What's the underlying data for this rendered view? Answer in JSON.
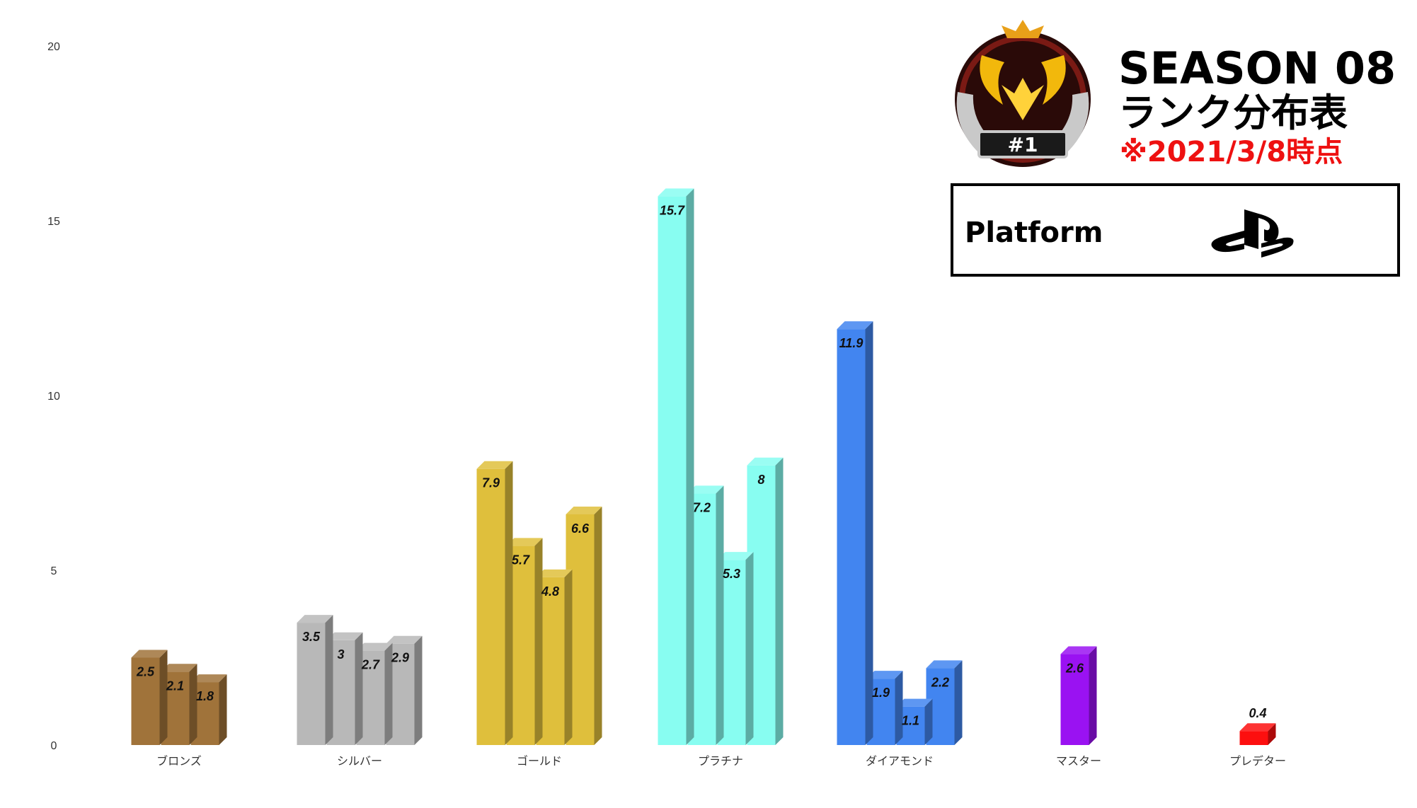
{
  "header": {
    "title_line1": "SEASON 08",
    "title_line2": "ランク分布表",
    "as_of": "※2021/3/8時点",
    "badge_text": "#1",
    "platform_label": "Platform",
    "platform_icon": "playstation-logo-icon"
  },
  "colors": {
    "bronze": "#a0733a",
    "silver": "#b8b8b8",
    "gold": "#dfbf3c",
    "platinum": "#88fdf1",
    "diamond": "#4285f0",
    "master": "#9a12f2",
    "predator": "#fd0f0f",
    "date_red": "#ee1111"
  },
  "chart_data": {
    "type": "bar",
    "title": "",
    "xlabel": "",
    "ylabel": "",
    "ylim": [
      0,
      20
    ],
    "yticks": [
      "0",
      "5",
      "10",
      "15",
      "20"
    ],
    "grid": false,
    "categories": [
      {
        "name": "ブロンズ",
        "color": "bronze",
        "values": [
          2.5,
          2.1,
          1.8
        ],
        "labels": [
          "2.5",
          "2.1",
          "1.8"
        ]
      },
      {
        "name": "シルバー",
        "color": "silver",
        "values": [
          3.5,
          3,
          2.7,
          2.9
        ],
        "labels": [
          "3.5",
          "3",
          "2.7",
          "2.9"
        ]
      },
      {
        "name": "ゴールド",
        "color": "gold",
        "values": [
          7.9,
          5.7,
          4.8,
          6.6
        ],
        "labels": [
          "7.9",
          "5.7",
          "4.8",
          "6.6"
        ]
      },
      {
        "name": "プラチナ",
        "color": "platinum",
        "values": [
          15.7,
          7.2,
          5.3,
          8
        ],
        "labels": [
          "15.7",
          "7.2",
          "5.3",
          "8"
        ]
      },
      {
        "name": "ダイアモンド",
        "color": "diamond",
        "values": [
          11.9,
          1.9,
          1.1,
          2.2
        ],
        "labels": [
          "11.9",
          "1.9",
          "1.1",
          "2.2"
        ]
      },
      {
        "name": "マスター",
        "color": "master",
        "values": [
          2.6
        ],
        "labels": [
          "2.6"
        ]
      },
      {
        "name": "プレデター",
        "color": "predator",
        "values": [
          0.4
        ],
        "labels": [
          "0.4"
        ]
      }
    ]
  }
}
